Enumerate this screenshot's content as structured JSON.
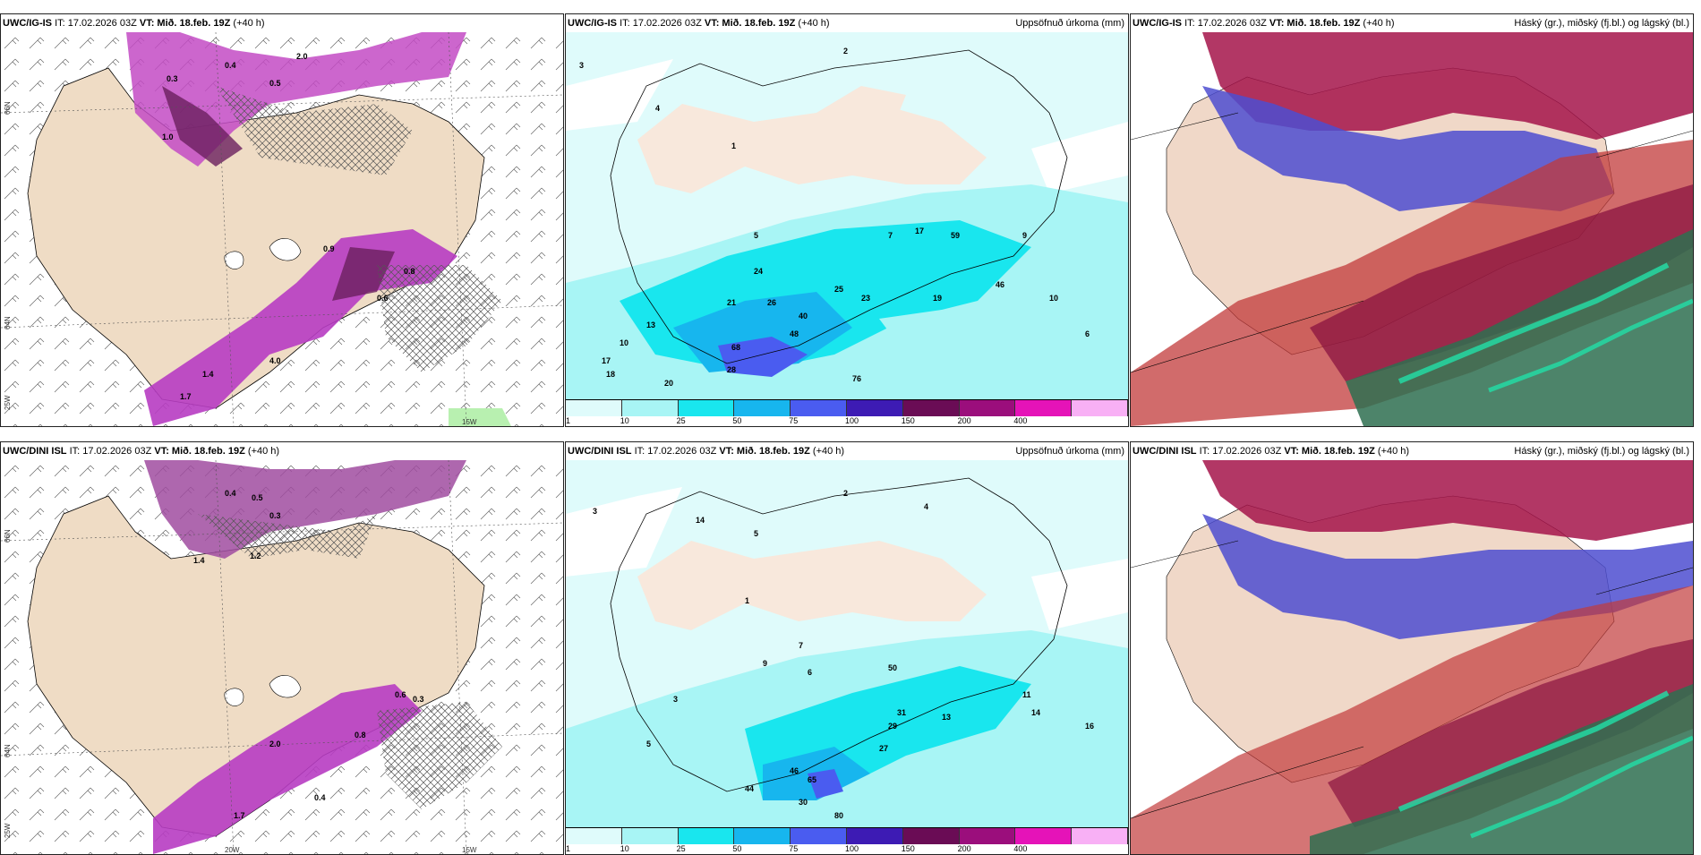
{
  "panels": [
    {
      "id": "p1",
      "model": "UWC/IG-IS",
      "it": "IT: 17.02.2026 03Z",
      "vt_label": "VT:",
      "vt": "Mið. 18.feb. 19Z",
      "lead": "(+40 h)",
      "title_right": ""
    },
    {
      "id": "p2",
      "model": "UWC/IG-IS",
      "it": "IT: 17.02.2026 03Z",
      "vt_label": "VT:",
      "vt": "Mið. 18.feb. 19Z",
      "lead": "(+40 h)",
      "title_right": "Uppsöfnuð úrkoma (mm)"
    },
    {
      "id": "p3",
      "model": "UWC/IG-IS",
      "it": "IT: 17.02.2026 03Z",
      "vt_label": "VT:",
      "vt": "Mið. 18.feb. 19Z",
      "lead": "(+40 h)",
      "title_right": "Háský (gr.), miðský (fj.bl.) og lágský (bl.)"
    },
    {
      "id": "p4",
      "model": "UWC/DINI ISL",
      "it": "IT: 17.02.2026 03Z",
      "vt_label": "VT:",
      "vt": "Mið. 18.feb. 19Z",
      "lead": "(+40 h)",
      "title_right": ""
    },
    {
      "id": "p5",
      "model": "UWC/DINI ISL",
      "it": "IT: 17.02.2026 03Z",
      "vt_label": "VT:",
      "vt": "Mið. 18.feb. 19Z",
      "lead": "(+40 h)",
      "title_right": "Uppsöfnuð úrkoma (mm)"
    },
    {
      "id": "p6",
      "model": "UWC/DINI ISL",
      "it": "IT: 17.02.2026 03Z",
      "vt_label": "VT:",
      "vt": "Mið. 18.feb. 19Z",
      "lead": "(+40 h)",
      "title_right": "Háský (gr.), miðský (fj.bl.) og lágský (bl.)"
    }
  ],
  "scale": {
    "ticks": [
      "1",
      "10",
      "25",
      "50",
      "75",
      "100",
      "150",
      "200",
      "400"
    ],
    "colors": [
      "#dffbfb",
      "#a8f5f5",
      "#19e6ee",
      "#17b6ee",
      "#4a5cf0",
      "#3d1bb4",
      "#6a0c55",
      "#9b0e7c",
      "#e513b8",
      "#f8b0f5"
    ]
  },
  "lat_labels": {
    "lat66": "66N",
    "lat64": "64N",
    "lon25": "25W",
    "lon20": "20W",
    "lon15": "15W"
  },
  "p1_labels": [
    "0.3",
    "0.4",
    "0.5",
    "1.0",
    "1.4",
    "1.7",
    "4.0",
    "0.6",
    "0.8",
    "2.0",
    "0.9"
  ],
  "p2_labels": [
    "2",
    "3",
    "4",
    "1",
    "5",
    "7",
    "17",
    "59",
    "24",
    "26",
    "21",
    "13",
    "10",
    "17",
    "18",
    "20",
    "28",
    "68",
    "48",
    "76",
    "40",
    "25",
    "23",
    "19",
    "46",
    "9",
    "10",
    "6"
  ],
  "p4_labels": [
    "0.4",
    "0.5",
    "0.3",
    "1.4",
    "1.2",
    "0.6",
    "0.8",
    "2.0",
    "1.7",
    "0.4",
    "0.3"
  ],
  "p5_labels": [
    "3",
    "2",
    "4",
    "14",
    "5",
    "7",
    "1",
    "6",
    "9",
    "50",
    "11",
    "14",
    "16",
    "31",
    "29",
    "27",
    "3",
    "5",
    "44",
    "30",
    "80",
    "65",
    "46",
    "13"
  ]
}
